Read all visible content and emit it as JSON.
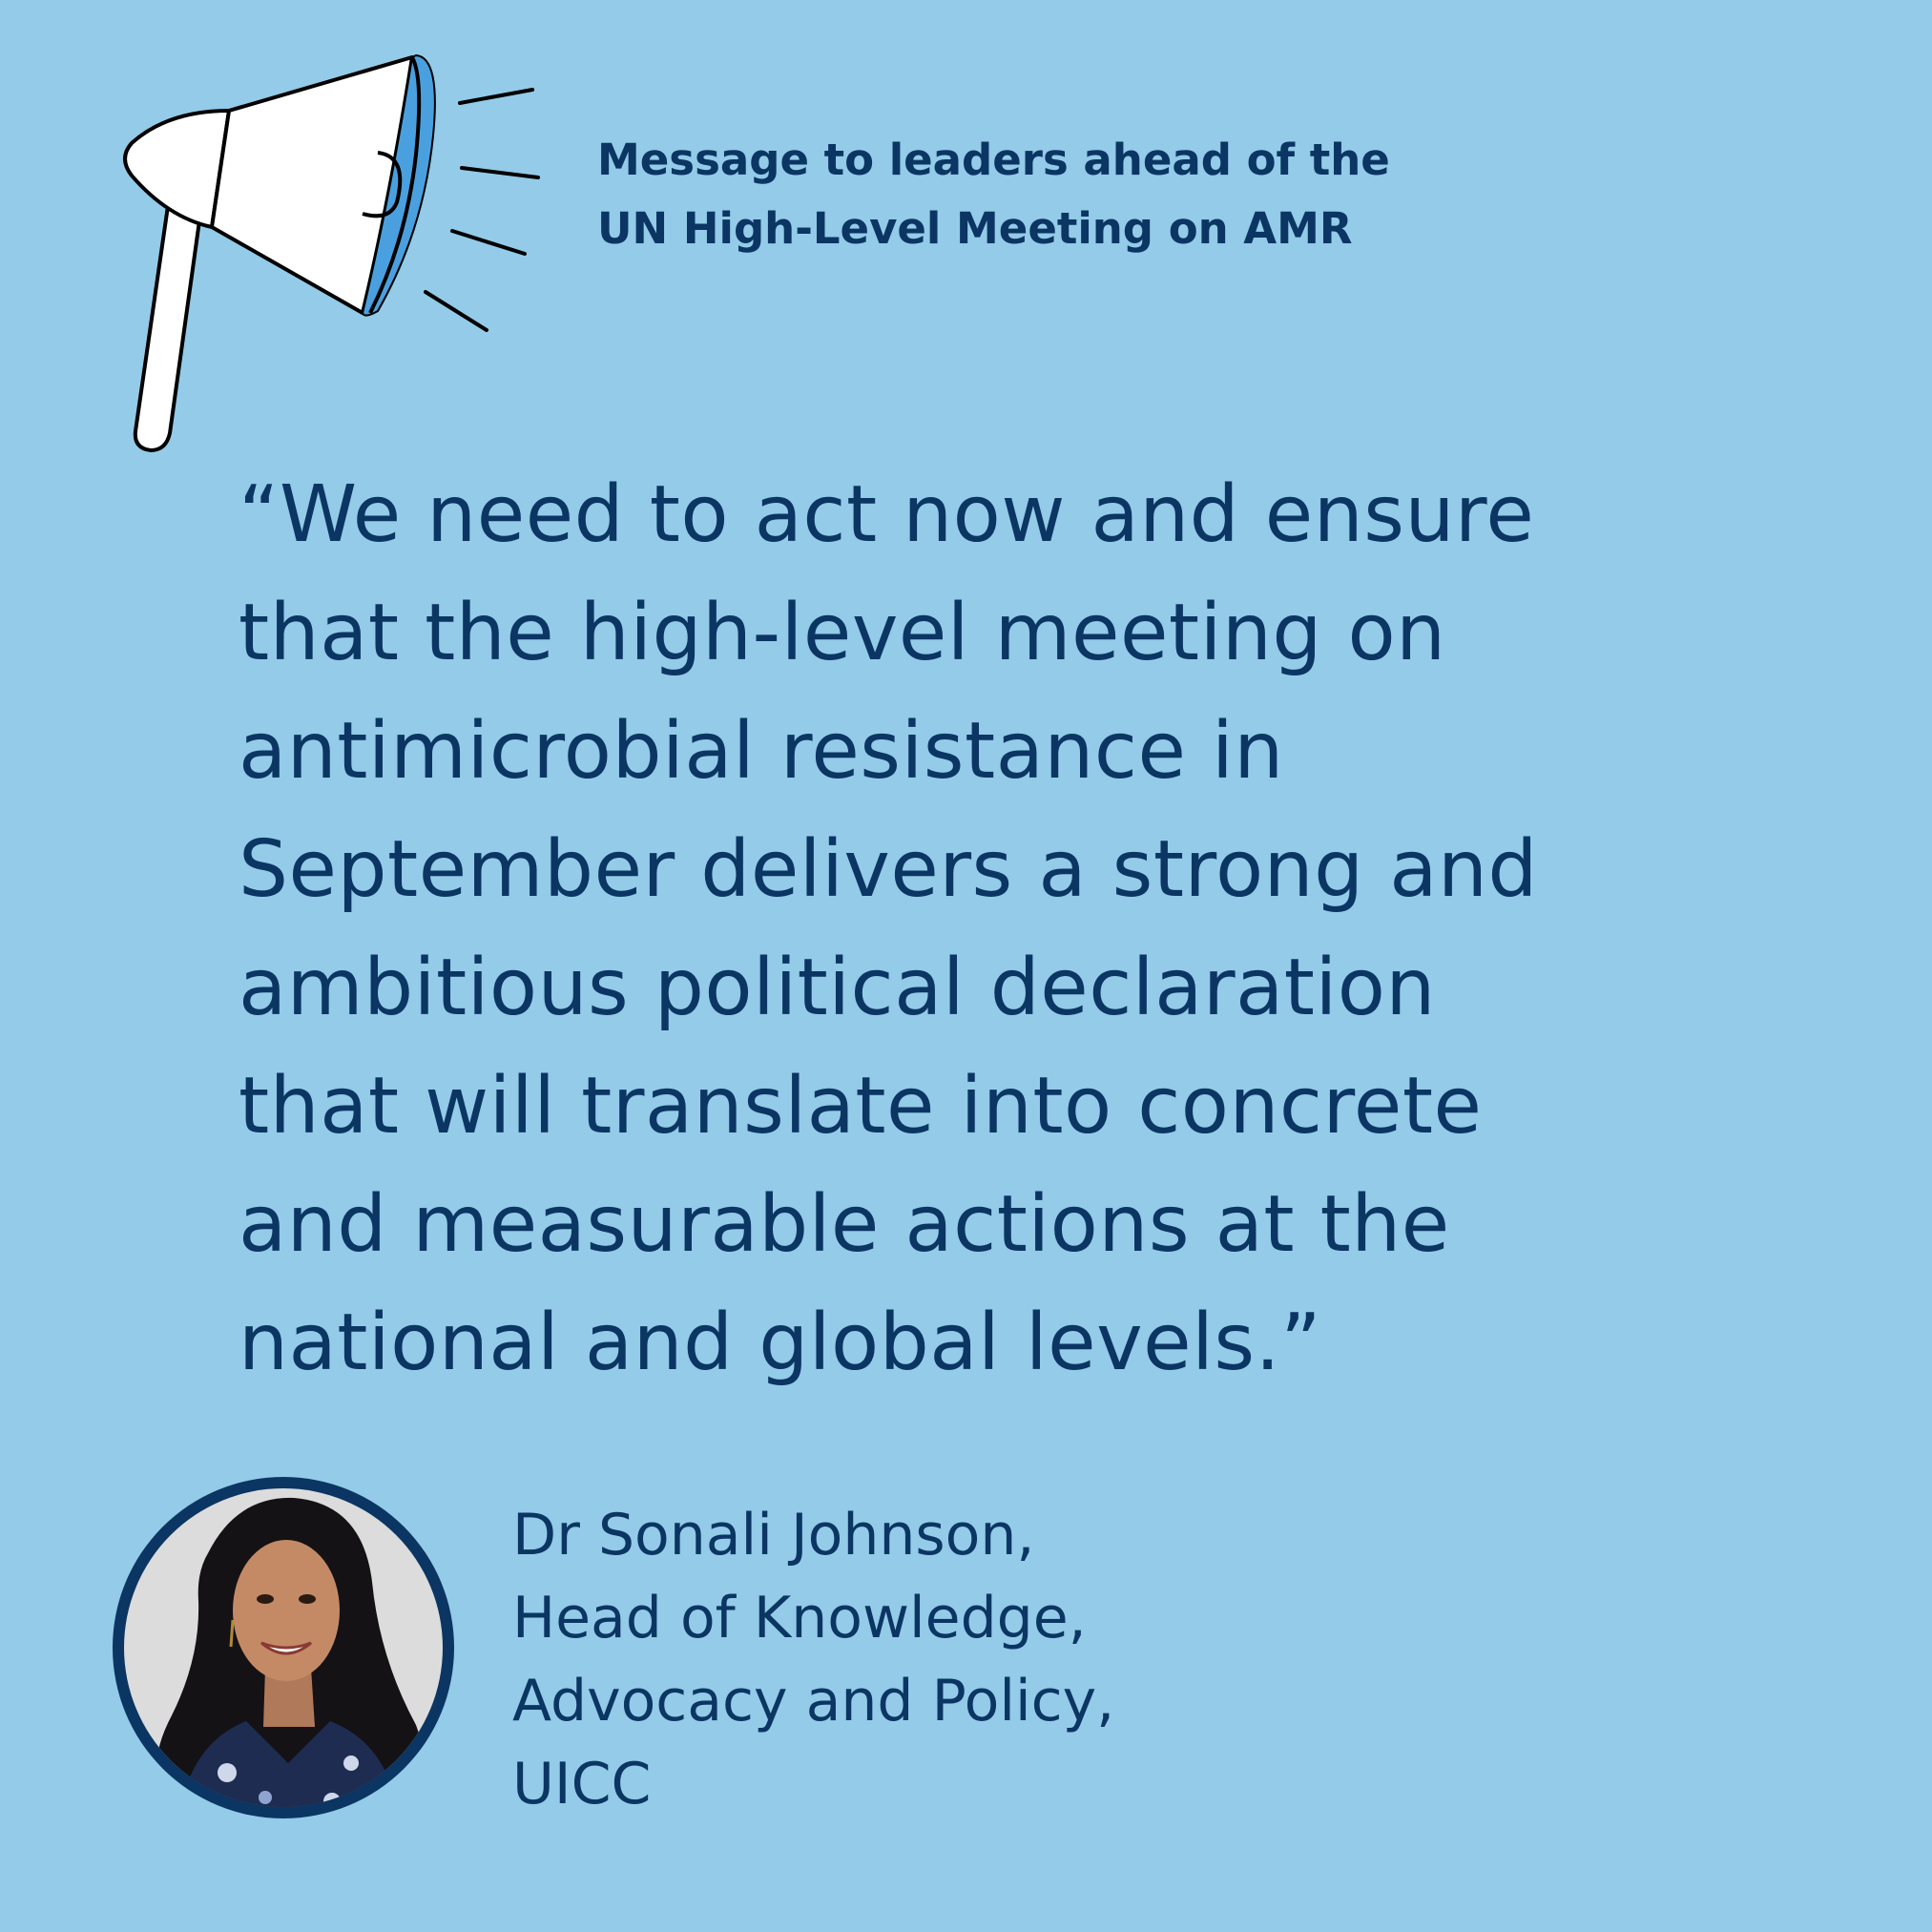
{
  "header": {
    "line1": "Message to leaders ahead of the",
    "line2": "UN High-Level Meeting on AMR"
  },
  "quote": {
    "lines": [
      "“We need to act now and ensure",
      "that the high-level meeting on",
      "antimicrobial resistance in",
      "September delivers a strong and",
      "ambitious political declaration",
      "that will translate into concrete",
      "and measurable actions at the",
      "national and global levels.”"
    ]
  },
  "attribution": {
    "lines": [
      "Dr Sonali Johnson,",
      "Head of Knowledge,",
      "Advocacy and Policy,",
      "UICC"
    ]
  },
  "colors": {
    "background": "#93cbe8",
    "text": "#0b3562",
    "accent": "#4aa0de"
  },
  "icons": {
    "megaphone": "megaphone-icon"
  }
}
